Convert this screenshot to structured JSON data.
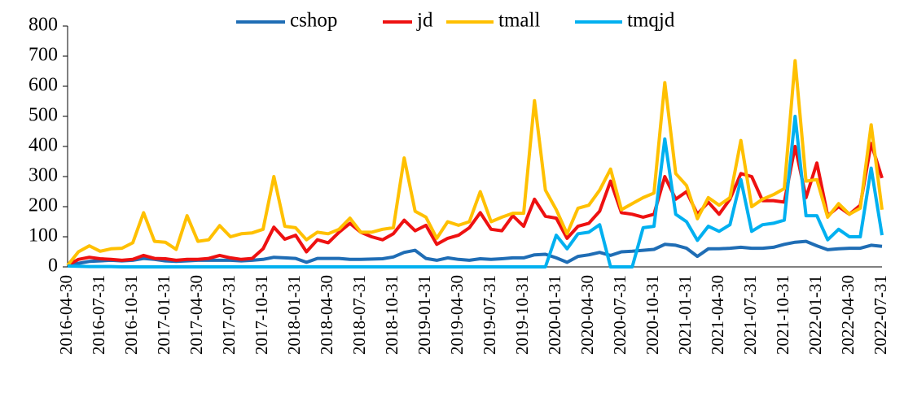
{
  "chart_data": {
    "type": "line",
    "categories": [
      "2016-04-30",
      null,
      null,
      "2016-07-31",
      null,
      null,
      "2016-10-31",
      null,
      null,
      "2017-01-31",
      null,
      null,
      "2017-04-30",
      null,
      null,
      "2017-07-31",
      null,
      null,
      "2017-10-31",
      null,
      null,
      "2018-01-31",
      null,
      null,
      "2018-04-30",
      null,
      null,
      "2018-07-31",
      null,
      null,
      "2018-10-31",
      null,
      null,
      "2019-01-31",
      null,
      null,
      "2019-04-30",
      null,
      null,
      "2019-07-31",
      null,
      null,
      "2019-10-31",
      null,
      null,
      "2020-01-31",
      null,
      null,
      "2020-04-30",
      null,
      null,
      "2020-07-31",
      null,
      null,
      "2020-10-31",
      null,
      null,
      "2021-01-31",
      null,
      null,
      "2021-04-30",
      null,
      null,
      "2021-07-31",
      null,
      null,
      "2021-10-31",
      null,
      null,
      "2022-01-31",
      null,
      null,
      "2022-04-30",
      null,
      null,
      "2022-07-31"
    ],
    "series": [
      {
        "name": "cshop",
        "color": "#1f6db5",
        "values": [
          5,
          12,
          18,
          20,
          22,
          20,
          22,
          28,
          25,
          20,
          18,
          20,
          22,
          22,
          22,
          22,
          20,
          22,
          25,
          32,
          30,
          28,
          15,
          28,
          28,
          28,
          25,
          25,
          26,
          27,
          33,
          48,
          55,
          28,
          22,
          30,
          25,
          22,
          27,
          25,
          27,
          30,
          30,
          40,
          42,
          30,
          15,
          35,
          40,
          48,
          38,
          50,
          52,
          55,
          58,
          75,
          72,
          62,
          35,
          60,
          60,
          62,
          65,
          62,
          62,
          65,
          75,
          82,
          85,
          70,
          57,
          60,
          62,
          62,
          72,
          68
        ]
      },
      {
        "name": "jd",
        "color": "#ee1111",
        "values": [
          5,
          25,
          32,
          27,
          25,
          22,
          25,
          38,
          28,
          27,
          22,
          25,
          25,
          28,
          38,
          30,
          25,
          28,
          60,
          132,
          92,
          105,
          50,
          90,
          80,
          115,
          145,
          115,
          100,
          90,
          110,
          155,
          120,
          138,
          75,
          95,
          105,
          130,
          180,
          125,
          120,
          170,
          135,
          225,
          168,
          162,
          95,
          135,
          145,
          185,
          285,
          180,
          175,
          165,
          175,
          300,
          225,
          250,
          175,
          215,
          175,
          225,
          310,
          300,
          220,
          220,
          215,
          400,
          230,
          345,
          170,
          200,
          175,
          205,
          410,
          295
        ]
      },
      {
        "name": "tmall",
        "color": "#ffc000",
        "values": [
          5,
          50,
          70,
          52,
          60,
          62,
          80,
          180,
          85,
          82,
          58,
          170,
          85,
          90,
          137,
          100,
          110,
          113,
          125,
          300,
          135,
          130,
          90,
          115,
          110,
          125,
          162,
          115,
          115,
          125,
          130,
          362,
          185,
          165,
          95,
          150,
          138,
          150,
          250,
          150,
          165,
          178,
          178,
          552,
          255,
          190,
          110,
          195,
          205,
          255,
          325,
          190,
          210,
          230,
          245,
          612,
          310,
          270,
          160,
          230,
          205,
          230,
          420,
          200,
          225,
          240,
          260,
          685,
          285,
          290,
          165,
          210,
          175,
          195,
          472,
          190
        ]
      },
      {
        "name": "tmqjd",
        "color": "#00b0f0",
        "values": [
          3,
          2,
          1,
          1,
          1,
          0,
          0,
          0,
          0,
          0,
          0,
          0,
          0,
          0,
          0,
          0,
          0,
          0,
          0,
          0,
          0,
          0,
          0,
          0,
          0,
          0,
          0,
          0,
          0,
          0,
          0,
          0,
          0,
          0,
          0,
          0,
          0,
          0,
          0,
          0,
          0,
          0,
          0,
          0,
          0,
          105,
          60,
          110,
          115,
          140,
          0,
          0,
          0,
          130,
          135,
          425,
          175,
          150,
          88,
          135,
          118,
          140,
          290,
          118,
          140,
          145,
          155,
          500,
          170,
          170,
          90,
          125,
          100,
          100,
          328,
          105
        ]
      }
    ],
    "ylim": [
      0,
      800
    ],
    "yticks": [
      0,
      100,
      200,
      300,
      400,
      500,
      600,
      700,
      800
    ]
  }
}
